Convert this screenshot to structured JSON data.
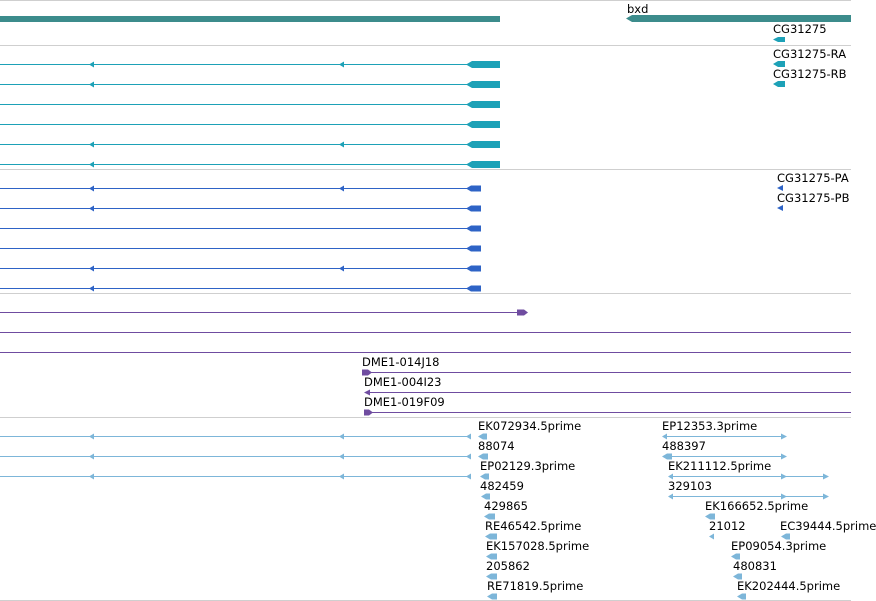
{
  "colors": {
    "gene": "#3c8c8c",
    "transcript": "#1da1b7",
    "cds": "#2e63c6",
    "clone": "#6f4ca0",
    "est": "#7db6d9",
    "separator": "#cfcfcf"
  },
  "icons": {
    "intron_strand": "arrowhead-left-icon",
    "gene_end": "feature-arrow-icon"
  },
  "tracks": {
    "genes": {
      "labels": [
        "bxd",
        "CG31275"
      ]
    },
    "transcripts": {
      "labels": [
        "CG31275-RA",
        "CG31275-RB"
      ]
    },
    "proteins": {
      "labels": [
        "CG31275-PA",
        "CG31275-PB"
      ]
    },
    "clones": {
      "labels": [
        "DME1-014J18",
        "DME1-004I23",
        "DME1-019F09"
      ]
    },
    "ests": {
      "labels": [
        "EK072934.5prime",
        "88074",
        "EP02129.3prime",
        "482459",
        "429865",
        "RE46542.5prime",
        "EK157028.5prime",
        "205862",
        "RE71819.5prime",
        "EP12353.3prime",
        "488397",
        "EK211112.5prime",
        "329103",
        "EK166652.5prime",
        "21012",
        "EC39444.5prime",
        "EP09054.3prime",
        "480831",
        "EK202444.5prime"
      ]
    }
  }
}
